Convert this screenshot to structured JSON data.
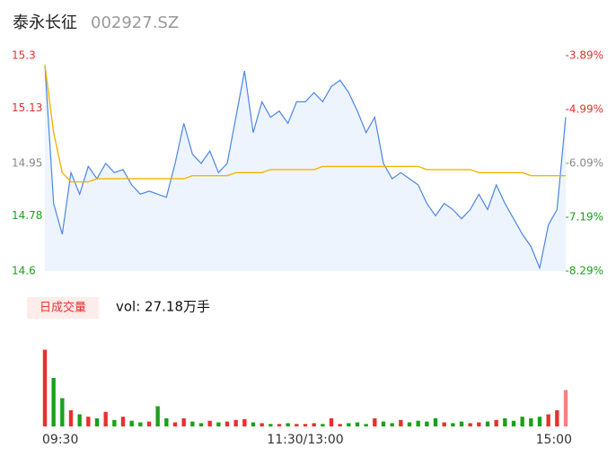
{
  "header": {
    "name": "泰永长征",
    "code": "002927.SZ"
  },
  "chart_data": [
    {
      "type": "line",
      "categories": [
        "09:30",
        null,
        null,
        null,
        null,
        null,
        null,
        null,
        null,
        null,
        null,
        null,
        null,
        null,
        null,
        null,
        null,
        null,
        null,
        null,
        null,
        null,
        null,
        null,
        null,
        null,
        null,
        null,
        null,
        null,
        "11:30/13:00",
        null,
        null,
        null,
        null,
        null,
        null,
        null,
        null,
        null,
        null,
        null,
        null,
        null,
        null,
        null,
        null,
        null,
        null,
        null,
        null,
        null,
        null,
        null,
        null,
        null,
        null,
        null,
        null,
        null,
        "15:00"
      ],
      "series": [
        {
          "name": "price",
          "color": "#4a86e8",
          "values": [
            15.27,
            14.82,
            14.72,
            14.92,
            14.85,
            14.94,
            14.9,
            14.95,
            14.92,
            14.93,
            14.88,
            14.85,
            14.86,
            14.85,
            14.84,
            14.95,
            15.08,
            14.98,
            14.95,
            14.99,
            14.92,
            14.95,
            15.1,
            15.25,
            15.05,
            15.15,
            15.1,
            15.12,
            15.08,
            15.15,
            15.15,
            15.18,
            15.15,
            15.2,
            15.22,
            15.18,
            15.12,
            15.05,
            15.1,
            14.95,
            14.9,
            14.92,
            14.9,
            14.88,
            14.82,
            14.78,
            14.82,
            14.8,
            14.77,
            14.8,
            14.85,
            14.8,
            14.88,
            14.82,
            14.77,
            14.72,
            14.68,
            14.61,
            14.75,
            14.8,
            15.1
          ]
        },
        {
          "name": "average",
          "color": "#f5b400",
          "values": [
            15.27,
            15.05,
            14.92,
            14.89,
            14.89,
            14.89,
            14.9,
            14.9,
            14.9,
            14.9,
            14.9,
            14.9,
            14.9,
            14.9,
            14.9,
            14.9,
            14.9,
            14.91,
            14.91,
            14.91,
            14.91,
            14.91,
            14.92,
            14.92,
            14.92,
            14.92,
            14.93,
            14.93,
            14.93,
            14.93,
            14.93,
            14.93,
            14.94,
            14.94,
            14.94,
            14.94,
            14.94,
            14.94,
            14.94,
            14.94,
            14.94,
            14.94,
            14.94,
            14.94,
            14.93,
            14.93,
            14.93,
            14.93,
            14.93,
            14.93,
            14.92,
            14.92,
            14.92,
            14.92,
            14.92,
            14.92,
            14.91,
            14.91,
            14.91,
            14.91,
            14.91
          ]
        }
      ],
      "ylim": [
        14.6,
        15.3
      ],
      "yticks": [
        15.3,
        15.13,
        14.95,
        14.78,
        14.6
      ],
      "y2lim": [
        -8.29,
        -3.89
      ],
      "y2ticks": [
        {
          "value": -3.89,
          "label": "-3.89%"
        },
        {
          "value": -4.99,
          "label": "-4.99%"
        },
        {
          "value": -6.09,
          "label": "-6.09%"
        },
        {
          "value": -7.19,
          "label": "-7.19%"
        },
        {
          "value": -8.29,
          "label": "-8.29%"
        }
      ]
    },
    {
      "type": "bar",
      "label": "日成交量",
      "title": "vol: 27.18万手",
      "values": [
        0.95,
        0.6,
        0.35,
        0.2,
        0.15,
        0.12,
        0.1,
        0.18,
        0.08,
        0.12,
        0.07,
        0.05,
        0.06,
        0.25,
        0.1,
        0.05,
        0.1,
        0.06,
        0.04,
        0.07,
        0.05,
        0.06,
        0.08,
        0.09,
        0.05,
        0.04,
        0.03,
        0.03,
        0.04,
        0.03,
        0.03,
        0.04,
        0.03,
        0.1,
        0.03,
        0.04,
        0.05,
        0.03,
        0.1,
        0.06,
        0.04,
        0.08,
        0.05,
        0.07,
        0.06,
        0.1,
        0.05,
        0.04,
        0.06,
        0.04,
        0.05,
        0.06,
        0.08,
        0.1,
        0.07,
        0.12,
        0.1,
        0.12,
        0.15,
        0.2,
        0.45
      ],
      "ylim": [
        0,
        1
      ],
      "up_color": "#e8302e",
      "down_color": "#1aa01a"
    }
  ]
}
